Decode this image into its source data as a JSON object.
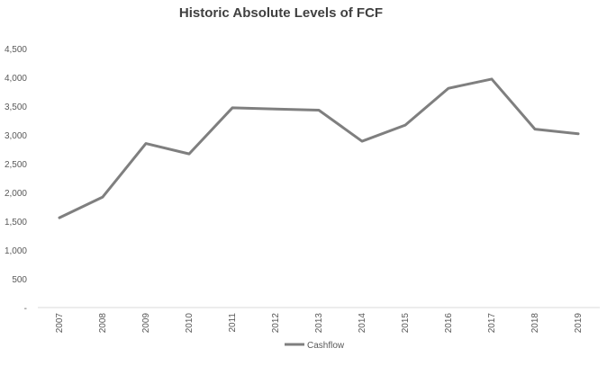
{
  "chart_data": {
    "type": "line",
    "title": "Historic Absolute Levels of FCF",
    "xlabel": "",
    "ylabel": "",
    "categories": [
      "2007",
      "2008",
      "2009",
      "2010",
      "2011",
      "2012",
      "2013",
      "2014",
      "2015",
      "2016",
      "2017",
      "2018",
      "2019"
    ],
    "y_ticks": [
      "-",
      "500",
      "1,000",
      "1,500",
      "2,000",
      "2,500",
      "3,000",
      "3,500",
      "4,000",
      "4,500"
    ],
    "ylim": [
      0,
      4500
    ],
    "grid": false,
    "legend_position": "bottom",
    "series": [
      {
        "name": "Cashflow",
        "color": "#7f7f7f",
        "values": [
          1560,
          1920,
          2850,
          2670,
          3470,
          3450,
          3430,
          2890,
          3170,
          3810,
          3970,
          3100,
          3020
        ]
      }
    ]
  }
}
